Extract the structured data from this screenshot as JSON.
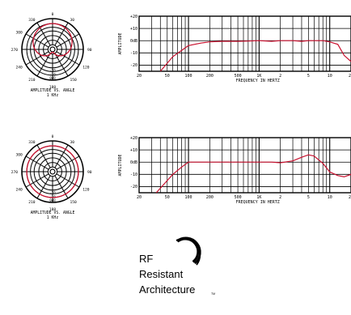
{
  "colors": {
    "curve": "#c8102e",
    "grid": "#000000",
    "background": "#ffffff"
  },
  "polar_angle_labels": [
    "0",
    "30",
    "60",
    "90",
    "120",
    "150",
    "180",
    "210",
    "240",
    "270",
    "300",
    "330"
  ],
  "polar_labels": {
    "visible_angles": [
      "0",
      "30",
      "90",
      "120",
      "150",
      "180",
      "210",
      "240",
      "270",
      "300",
      "330"
    ],
    "bottom": "180",
    "db_ticks": [
      "0dB",
      "-10",
      "-20"
    ]
  },
  "polar_plots": [
    {
      "caption_line1": "AMPLITUDE VS. ANGLE",
      "caption_line2": "1 KHz",
      "pattern": "cardioid"
    },
    {
      "caption_line1": "AMPLITUDE VS. ANGLE",
      "caption_line2": "1 KHz",
      "pattern": "omnidirectional"
    }
  ],
  "chart_data": [
    {
      "type": "line",
      "ylabel": "AMPLITUDE",
      "xlabel": "FREQUENCY IN HERTZ",
      "x_scale": "log",
      "x_ticks": [
        "20",
        "50",
        "100",
        "200",
        "500",
        "1K",
        "2",
        "5",
        "10",
        "20"
      ],
      "y_ticks": [
        "+20",
        "+10",
        "0dB",
        "-10",
        "-20"
      ],
      "xlim": [
        20,
        20000
      ],
      "ylim": [
        -25,
        20
      ],
      "series": [
        {
          "values_x": [
            40,
            60,
            80,
            100,
            150,
            200,
            300,
            500,
            700,
            1000,
            1500,
            2000,
            3000,
            4000,
            5000,
            6000,
            8000,
            10000,
            13000,
            16000,
            20000
          ],
          "values_y": [
            -25,
            -13,
            -8,
            -4,
            -2,
            -1,
            -0.5,
            -0.5,
            -0.3,
            0,
            -0.5,
            0,
            0,
            -0.5,
            0,
            0,
            0,
            -1,
            -3,
            -12,
            -17
          ]
        }
      ]
    },
    {
      "type": "line",
      "ylabel": "AMPLITUDE",
      "xlabel": "FREQUENCY IN HERTZ",
      "x_scale": "log",
      "x_ticks": [
        "20",
        "50",
        "100",
        "200",
        "500",
        "1K",
        "2",
        "5",
        "10",
        "20"
      ],
      "y_ticks": [
        "+20",
        "+10",
        "0dB",
        "-10",
        "-20"
      ],
      "xlim": [
        20,
        20000
      ],
      "ylim": [
        -25,
        20
      ],
      "series": [
        {
          "values_x": [
            35,
            45,
            60,
            80,
            100,
            200,
            500,
            1000,
            1500,
            2000,
            3000,
            4000,
            5000,
            6000,
            8000,
            10000,
            13000,
            16000,
            20000
          ],
          "values_y": [
            -25,
            -18,
            -10,
            -4,
            0,
            0,
            0,
            0,
            0,
            -0.5,
            1,
            4,
            6,
            5,
            -1,
            -8,
            -11,
            -12,
            -10
          ]
        }
      ]
    }
  ],
  "logo": {
    "line1": "RF",
    "line2": "Resistant",
    "line3": "Architecture",
    "tm": "TM"
  }
}
